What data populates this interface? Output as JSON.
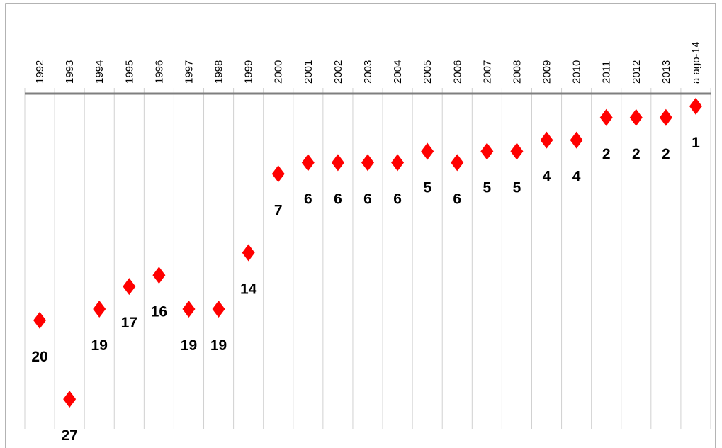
{
  "chart_data": {
    "type": "scatter",
    "categories": [
      "1992",
      "1993",
      "1994",
      "1995",
      "1996",
      "1997",
      "1998",
      "1999",
      "2000",
      "2001",
      "2002",
      "2003",
      "2004",
      "2005",
      "2006",
      "2007",
      "2008",
      "2009",
      "2010",
      "2011",
      "2012",
      "2013",
      "a ago-14"
    ],
    "values": [
      20,
      27,
      19,
      17,
      16,
      19,
      19,
      14,
      7,
      6,
      6,
      6,
      6,
      5,
      6,
      5,
      5,
      4,
      4,
      2,
      2,
      2,
      1
    ],
    "color": "#ff0000",
    "ylim": [
      0,
      28
    ],
    "y_reversed": true
  }
}
